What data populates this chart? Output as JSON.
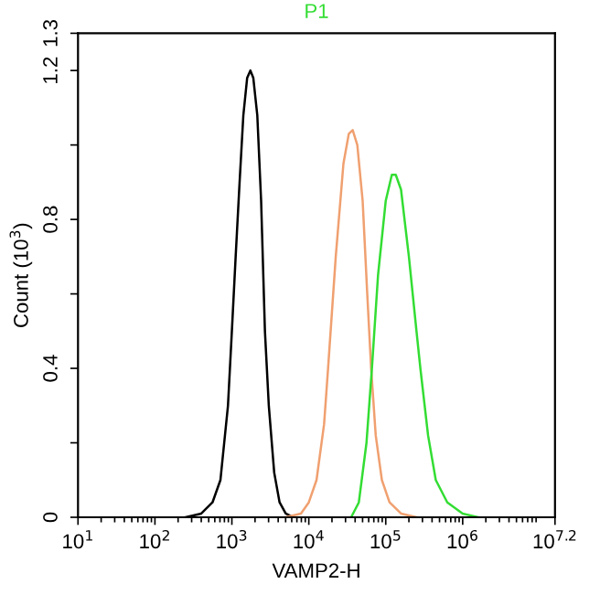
{
  "chart_data": {
    "type": "line",
    "title": "P1",
    "xlabel": "VAMP2-H",
    "ylabel": "Count (10$^{3}$)",
    "log": "x",
    "grid": false,
    "marker": "none",
    "line_style": "solid",
    "xlim": [
      10,
      15848932
    ],
    "ylim": [
      0,
      1.3
    ],
    "xticks": [
      {
        "value": 10,
        "label": "10$^{1}$"
      },
      {
        "value": 100,
        "label": "10$^{2}$"
      },
      {
        "value": 1000,
        "label": "10$^{3}$"
      },
      {
        "value": 10000,
        "label": "10$^{4}$"
      },
      {
        "value": 100000,
        "label": "10$^{5}$"
      },
      {
        "value": 1000000,
        "label": "10$^{6}$"
      },
      {
        "value": 15848932,
        "label": "10$^{7.2}$"
      }
    ],
    "yticks": [
      0,
      {
        "value": 0.2,
        "label": null
      },
      0.4,
      {
        "value": 0.6,
        "label": null
      },
      0.8,
      {
        "value": 1.0,
        "label": null
      },
      1.2,
      1.3
    ],
    "series": [
      {
        "color": "#000000",
        "x": [
          250,
          400,
          560,
          710,
          890,
          1000,
          1120,
          1260,
          1410,
          1580,
          1740,
          1900,
          2140,
          2400,
          2690,
          3020,
          3550,
          4170,
          5010,
          6310
        ],
        "values": [
          0,
          0.01,
          0.04,
          0.1,
          0.3,
          0.5,
          0.7,
          0.9,
          1.08,
          1.18,
          1.2,
          1.18,
          1.08,
          0.85,
          0.5,
          0.3,
          0.12,
          0.04,
          0.01,
          0
        ]
      },
      {
        "color": "#f0a070",
        "x": [
          5000,
          7900,
          10000,
          12600,
          15800,
          17800,
          22400,
          28200,
          33100,
          37200,
          42700,
          50100,
          57500,
          64600,
          74100,
          89100,
          112000,
          158000,
          251000
        ],
        "values": [
          0,
          0.01,
          0.04,
          0.1,
          0.25,
          0.4,
          0.7,
          0.95,
          1.03,
          1.04,
          1.0,
          0.85,
          0.6,
          0.4,
          0.22,
          0.1,
          0.04,
          0.01,
          0
        ]
      },
      {
        "color": "#33dd33",
        "x": [
          35500,
          44700,
          56200,
          66100,
          79400,
          100000,
          120000,
          135000,
          158000,
          200000,
          251000,
          282000,
          355000,
          447000,
          631000,
          1000000,
          1580000
        ],
        "values": [
          0,
          0.04,
          0.2,
          0.4,
          0.65,
          0.85,
          0.92,
          0.92,
          0.88,
          0.7,
          0.5,
          0.4,
          0.22,
          0.1,
          0.04,
          0.01,
          0
        ]
      }
    ]
  }
}
